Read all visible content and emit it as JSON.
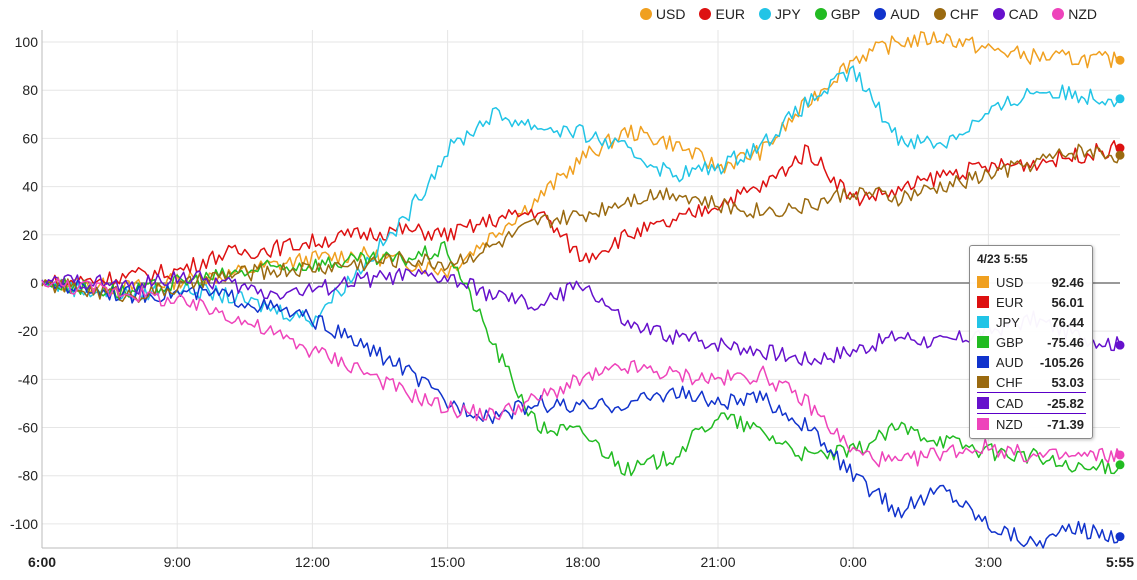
{
  "chart_data": {
    "type": "line",
    "x_ticks": [
      "6:00",
      "9:00",
      "12:00",
      "15:00",
      "18:00",
      "21:00",
      "0:00",
      "3:00",
      "5:55"
    ],
    "y_ticks": [
      100,
      80,
      60,
      40,
      20,
      0,
      -20,
      -40,
      -60,
      -80,
      -100
    ],
    "ylim": [
      -110,
      105
    ],
    "xlim_hours": [
      0,
      23.92
    ],
    "grid": true,
    "legend_position": "top-right",
    "x_hours": [
      0,
      1,
      2,
      3,
      4,
      5,
      6,
      7,
      8,
      9,
      10,
      11,
      12,
      13,
      14,
      15,
      16,
      17,
      18,
      19,
      20,
      21,
      22,
      23,
      23.92
    ],
    "series": [
      {
        "name": "USD",
        "color": "#f0a020",
        "values": [
          0,
          -1,
          -2,
          1,
          3,
          7,
          10,
          12,
          9,
          5,
          20,
          35,
          52,
          63,
          58,
          48,
          55,
          75,
          93,
          100,
          102,
          97,
          94,
          93,
          92.46
        ]
      },
      {
        "name": "EUR",
        "color": "#dd1111",
        "values": [
          0,
          1,
          3,
          5,
          12,
          14,
          17,
          20,
          22,
          20,
          26,
          30,
          10,
          20,
          25,
          33,
          40,
          55,
          35,
          38,
          45,
          48,
          50,
          53,
          56.01
        ]
      },
      {
        "name": "JPY",
        "color": "#22c4e6",
        "values": [
          0,
          -3,
          -5,
          -2,
          -5,
          -10,
          -15,
          5,
          25,
          55,
          70,
          65,
          62,
          55,
          45,
          48,
          58,
          75,
          88,
          60,
          58,
          70,
          80,
          78,
          76.44
        ]
      },
      {
        "name": "GBP",
        "color": "#22bb22",
        "values": [
          0,
          -2,
          -4,
          0,
          3,
          6,
          8,
          9,
          10,
          14,
          -25,
          -60,
          -62,
          -78,
          -72,
          -55,
          -62,
          -72,
          -70,
          -60,
          -65,
          -70,
          -72,
          -78,
          -75.46
        ]
      },
      {
        "name": "AUD",
        "color": "#1133cc",
        "values": [
          0,
          -2,
          -5,
          -4,
          -5,
          -10,
          -15,
          -25,
          -35,
          -50,
          -55,
          -50,
          -52,
          -50,
          -45,
          -50,
          -48,
          -60,
          -80,
          -95,
          -85,
          -100,
          -108,
          -102,
          -105.26
        ]
      },
      {
        "name": "CHF",
        "color": "#9a6a10",
        "values": [
          0,
          -3,
          -5,
          -2,
          3,
          5,
          6,
          8,
          10,
          8,
          15,
          25,
          28,
          35,
          38,
          32,
          30,
          32,
          38,
          35,
          40,
          45,
          50,
          55,
          53.03
        ]
      },
      {
        "name": "CAD",
        "color": "#6611cc",
        "values": [
          0,
          1,
          -2,
          3,
          0,
          -4,
          -3,
          1,
          3,
          2,
          -5,
          -10,
          0,
          -18,
          -22,
          -25,
          -28,
          -32,
          -28,
          -22,
          -25,
          -20,
          -15,
          -22,
          -25.82
        ]
      },
      {
        "name": "NZD",
        "color": "#ee44bb",
        "values": [
          0,
          -2,
          -4,
          -8,
          -12,
          -20,
          -28,
          -35,
          -45,
          -52,
          -55,
          -48,
          -40,
          -35,
          -38,
          -40,
          -38,
          -50,
          -70,
          -75,
          -70,
          -68,
          -72,
          -72,
          -71.39
        ]
      }
    ]
  },
  "tooltip": {
    "title": "4/23 5:55",
    "rows": [
      {
        "name": "USD",
        "value": "92.46",
        "color": "#f0a020"
      },
      {
        "name": "EUR",
        "value": "56.01",
        "color": "#dd1111"
      },
      {
        "name": "JPY",
        "value": "76.44",
        "color": "#22c4e6"
      },
      {
        "name": "GBP",
        "value": "-75.46",
        "color": "#22bb22"
      },
      {
        "name": "AUD",
        "value": "-105.26",
        "color": "#1133cc"
      },
      {
        "name": "CHF",
        "value": "53.03",
        "color": "#9a6a10"
      },
      {
        "name": "CAD",
        "value": "-25.82",
        "color": "#6611cc"
      },
      {
        "name": "NZD",
        "value": "-71.39",
        "color": "#ee44bb"
      }
    ]
  }
}
